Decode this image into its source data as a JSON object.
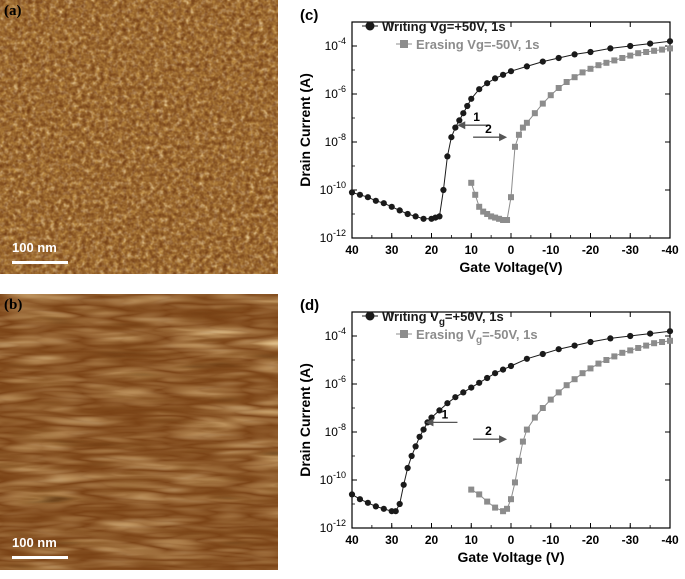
{
  "panels": {
    "a": {
      "label": "(a)",
      "scale_bar": "100 nm"
    },
    "b": {
      "label": "(b)",
      "scale_bar": "100 nm"
    }
  },
  "colors": {
    "writing": "#1a1a1a",
    "erasing": "#8c8c8c",
    "afm_dark": "#3a1a06",
    "afm_light": "#f2c070"
  },
  "chart_data": [
    {
      "panel": "(c)",
      "type": "line",
      "xlabel": "Gate Voltage(V)",
      "ylabel": "Drain Current (A)",
      "xlim": [
        40,
        -40
      ],
      "ylim": [
        1e-12,
        0.001
      ],
      "yscale": "log",
      "xticks": [
        40,
        30,
        20,
        10,
        0,
        -10,
        -20,
        -30,
        -40
      ],
      "yticks": [
        {
          "value": -12,
          "base": "10",
          "exp": "-12"
        },
        {
          "value": -10,
          "base": "10",
          "exp": "-10"
        },
        {
          "value": -8,
          "base": "10",
          "exp": "-8"
        },
        {
          "value": -6,
          "base": "10",
          "exp": "-6"
        },
        {
          "value": -4,
          "base": "10",
          "exp": "-4"
        }
      ],
      "legend_position": "top-right",
      "series": [
        {
          "name": "Writing Vg=+50V, 1s",
          "marker": "circle",
          "x": [
            40,
            38,
            36,
            34,
            32,
            30,
            28,
            26,
            24,
            22,
            20,
            19,
            18,
            17,
            16,
            15,
            14,
            13,
            12,
            11,
            10,
            8,
            6,
            4,
            2,
            0,
            -4,
            -8,
            -12,
            -16,
            -20,
            -25,
            -30,
            -35,
            -40
          ],
          "log10_y": [
            -10.1,
            -10.2,
            -10.3,
            -10.45,
            -10.55,
            -10.7,
            -10.85,
            -11.0,
            -11.1,
            -11.2,
            -11.2,
            -11.15,
            -11.1,
            -10.0,
            -8.6,
            -7.8,
            -7.4,
            -7.1,
            -6.8,
            -6.5,
            -6.2,
            -5.8,
            -5.55,
            -5.35,
            -5.2,
            -5.05,
            -4.85,
            -4.65,
            -4.5,
            -4.35,
            -4.25,
            -4.1,
            -4.0,
            -3.9,
            -3.8
          ]
        },
        {
          "name": "Erasing Vg=-50V, 1s",
          "marker": "square",
          "x": [
            10,
            9,
            8,
            7,
            6,
            5,
            4,
            3,
            2,
            1,
            0,
            -1,
            -2,
            -3,
            -4,
            -6,
            -8,
            -10,
            -12,
            -14,
            -16,
            -18,
            -20,
            -22,
            -24,
            -26,
            -28,
            -30,
            -32,
            -34,
            -36,
            -38,
            -40
          ],
          "log10_y": [
            -9.7,
            -10.2,
            -10.7,
            -10.9,
            -11.0,
            -11.1,
            -11.15,
            -11.2,
            -11.25,
            -11.25,
            -10.3,
            -8.2,
            -7.7,
            -7.4,
            -7.2,
            -6.8,
            -6.4,
            -6.05,
            -5.75,
            -5.5,
            -5.3,
            -5.1,
            -4.95,
            -4.8,
            -4.7,
            -4.6,
            -4.5,
            -4.4,
            -4.3,
            -4.25,
            -4.2,
            -4.15,
            -4.1
          ]
        }
      ],
      "annotations": [
        {
          "text": "1",
          "x": 10,
          "log10_y": -7.3
        },
        {
          "text": "2",
          "x": 4,
          "log10_y": -7.8
        }
      ]
    },
    {
      "panel": "(d)",
      "type": "line",
      "xlabel": "Gate Voltage (V)",
      "ylabel": "Drain Current (A)",
      "xlim": [
        40,
        -40
      ],
      "ylim": [
        1e-12,
        0.001
      ],
      "yscale": "log",
      "xticks": [
        40,
        30,
        20,
        10,
        0,
        -10,
        -20,
        -30,
        -40
      ],
      "yticks": [
        {
          "value": -12,
          "base": "10",
          "exp": "-12"
        },
        {
          "value": -10,
          "base": "10",
          "exp": "-10"
        },
        {
          "value": -8,
          "base": "10",
          "exp": "-8"
        },
        {
          "value": -6,
          "base": "10",
          "exp": "-6"
        },
        {
          "value": -4,
          "base": "10",
          "exp": "-4"
        }
      ],
      "legend_position": "top-right",
      "series": [
        {
          "name": "Writing Vg=+50V, 1s",
          "legend_parts": [
            "Writing V",
            "g",
            "=+50V, 1s"
          ],
          "marker": "circle",
          "x": [
            40,
            38,
            36,
            34,
            32,
            30,
            29,
            28,
            27,
            26,
            25,
            24,
            23,
            22,
            21,
            20,
            18,
            16,
            14,
            12,
            10,
            8,
            6,
            4,
            2,
            0,
            -4,
            -8,
            -12,
            -16,
            -20,
            -25,
            -30,
            -35,
            -40
          ],
          "log10_y": [
            -10.6,
            -10.8,
            -10.95,
            -11.1,
            -11.2,
            -11.3,
            -11.3,
            -11.0,
            -10.2,
            -9.5,
            -9.0,
            -8.6,
            -8.2,
            -7.9,
            -7.6,
            -7.4,
            -7.1,
            -6.8,
            -6.55,
            -6.35,
            -6.15,
            -5.95,
            -5.75,
            -5.55,
            -5.4,
            -5.25,
            -4.95,
            -4.75,
            -4.55,
            -4.4,
            -4.25,
            -4.1,
            -4.0,
            -3.9,
            -3.8
          ]
        },
        {
          "name": "Erasing Vg=-50V, 1s",
          "legend_parts": [
            "Erasing V",
            "g",
            "=-50V, 1s"
          ],
          "marker": "square",
          "x": [
            10,
            8,
            6,
            4,
            2,
            1,
            0,
            -1,
            -2,
            -3,
            -4,
            -6,
            -8,
            -10,
            -12,
            -14,
            -16,
            -18,
            -20,
            -22,
            -24,
            -26,
            -28,
            -30,
            -32,
            -34,
            -36,
            -38,
            -40
          ],
          "log10_y": [
            -10.4,
            -10.6,
            -10.9,
            -11.15,
            -11.3,
            -11.2,
            -10.8,
            -10.1,
            -9.2,
            -8.4,
            -7.9,
            -7.4,
            -7.0,
            -6.65,
            -6.35,
            -6.05,
            -5.8,
            -5.55,
            -5.35,
            -5.15,
            -5.0,
            -4.85,
            -4.7,
            -4.6,
            -4.5,
            -4.4,
            -4.3,
            -4.25,
            -4.2
          ]
        }
      ],
      "annotations": [
        {
          "text": "1",
          "x": 18,
          "log10_y": -7.6
        },
        {
          "text": "2",
          "x": 4,
          "log10_y": -8.3
        }
      ]
    }
  ]
}
